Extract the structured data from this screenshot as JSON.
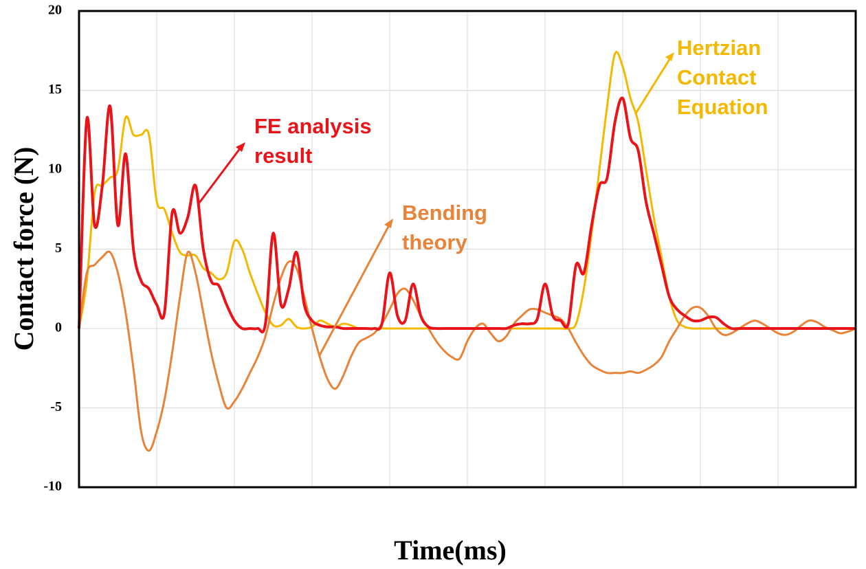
{
  "chart_data": {
    "type": "line",
    "y_label": "Contact force (N)",
    "x_label": "Time(ms)",
    "ylim": [
      -10,
      20
    ],
    "yticks": [
      -10,
      -5,
      0,
      5,
      10,
      15,
      20
    ],
    "grid": true,
    "categories": [
      null,
      null,
      null,
      null,
      null,
      null,
      null,
      null,
      null,
      null,
      null,
      null,
      null,
      null,
      null,
      null,
      null,
      null,
      null,
      null,
      null,
      null,
      null,
      null,
      null,
      null,
      null,
      null,
      null,
      null,
      null,
      null,
      null,
      null,
      null,
      null,
      null,
      null,
      null,
      null,
      null,
      null,
      null,
      null,
      null,
      null,
      null,
      null,
      null,
      null,
      null,
      null,
      null,
      null,
      null,
      null,
      null,
      null,
      null,
      null,
      null,
      null,
      null,
      null,
      null,
      null,
      null,
      null,
      null,
      null,
      null,
      null,
      null,
      null,
      null,
      null,
      null,
      null,
      null,
      null,
      null,
      null,
      null,
      null,
      null,
      null,
      null,
      null,
      null,
      null,
      null,
      null,
      null,
      null,
      null,
      null,
      null,
      null,
      null,
      null,
      null
    ],
    "series": [
      {
        "color": "#f5b800",
        "values": [
          0,
          3,
          8.5,
          9,
          9.5,
          10,
          13.3,
          12.2,
          12.2,
          12.2,
          8,
          7.5,
          6,
          4.8,
          4.6,
          4.6,
          3.8,
          3.5,
          3.1,
          3.5,
          5.5,
          5,
          3.5,
          2.2,
          1,
          0.2,
          0.2,
          0.6,
          0.1,
          0,
          0.1,
          0.5,
          0.3,
          0.1,
          0.3,
          0.2,
          0,
          0,
          0,
          0,
          0,
          0,
          0,
          0,
          0,
          0,
          0,
          0,
          0,
          0,
          0,
          0,
          0,
          0,
          0,
          0,
          0,
          0,
          0,
          0,
          0,
          0,
          0,
          0,
          0.3,
          2.5,
          6,
          10,
          14,
          17.3,
          16.5,
          14.5,
          13,
          10,
          7,
          4.5,
          2,
          0.5,
          0.1,
          0,
          0,
          0,
          0,
          0,
          0,
          0,
          0,
          0,
          0,
          0,
          0,
          0,
          0,
          0,
          0,
          0,
          0,
          0,
          0,
          0,
          0
        ]
      },
      {
        "color": "#e8843a",
        "values": [
          0,
          3.5,
          4,
          4.5,
          4.8,
          3.5,
          1,
          -2.5,
          -6.5,
          -7.7,
          -6.5,
          -4.5,
          -1.5,
          2,
          4.8,
          3.5,
          1,
          -1.5,
          -3.5,
          -5,
          -4.6,
          -3.8,
          -2.8,
          -1.8,
          -0.5,
          1.5,
          3.2,
          4.2,
          3.8,
          2,
          0,
          -1.8,
          -3.2,
          -3.8,
          -3,
          -1.8,
          -0.9,
          -0.6,
          -0.3,
          0.3,
          1.2,
          2.2,
          2.5,
          1.8,
          0.8,
          0,
          -0.8,
          -1.4,
          -1.8,
          -1.9,
          -0.8,
          0,
          0.3,
          -0.3,
          -0.8,
          -0.5,
          0.3,
          0.8,
          1.2,
          1.2,
          1,
          0.8,
          0.6,
          0,
          -0.9,
          -1.7,
          -2.3,
          -2.6,
          -2.8,
          -2.8,
          -2.8,
          -2.7,
          -2.8,
          -2.6,
          -2.3,
          -1.8,
          -0.8,
          0,
          0.8,
          1.3,
          1.3,
          0.8,
          0,
          -0.4,
          -0.3,
          0,
          0.3,
          0.5,
          0.3,
          0,
          -0.3,
          -0.4,
          -0.2,
          0.2,
          0.5,
          0.4,
          0.1,
          -0.1,
          -0.3,
          -0.2,
          0
        ]
      },
      {
        "color": "#e8141a",
        "values": [
          0,
          13.2,
          6.5,
          9,
          14,
          6.5,
          11,
          5,
          3,
          2.5,
          1.5,
          1,
          7.3,
          6,
          7,
          9,
          5,
          3,
          2.7,
          1.5,
          0.5,
          0,
          0,
          0,
          0.3,
          6,
          1.5,
          2.5,
          4.8,
          1.5,
          0.5,
          0.2,
          0.1,
          0.1,
          0,
          0,
          0,
          0,
          0,
          0.3,
          3.5,
          0.8,
          0.5,
          2.8,
          0.8,
          0.1,
          0,
          0,
          0,
          0,
          0,
          0,
          0,
          0,
          0,
          0,
          0.2,
          0.3,
          0.3,
          0.6,
          2.8,
          0.8,
          0.5,
          0.3,
          4,
          3.5,
          6.5,
          9,
          9.5,
          13,
          14.5,
          12,
          11.2,
          8,
          6,
          4,
          2,
          1.2,
          0.8,
          0.5,
          0.5,
          0.7,
          0.7,
          0.3,
          0,
          0,
          0,
          0,
          0,
          0,
          0,
          0,
          0,
          0,
          0,
          0,
          0,
          0,
          0,
          0,
          0
        ]
      }
    ],
    "annotations": [
      {
        "lines": [
          "FE analysis",
          "result"
        ],
        "color": "#e8141a"
      },
      {
        "lines": [
          "Bending",
          "theory"
        ],
        "color": "#e8843a"
      },
      {
        "lines": [
          "Hertzian",
          "Contact",
          "Equation"
        ],
        "color": "#f5b800"
      }
    ]
  }
}
